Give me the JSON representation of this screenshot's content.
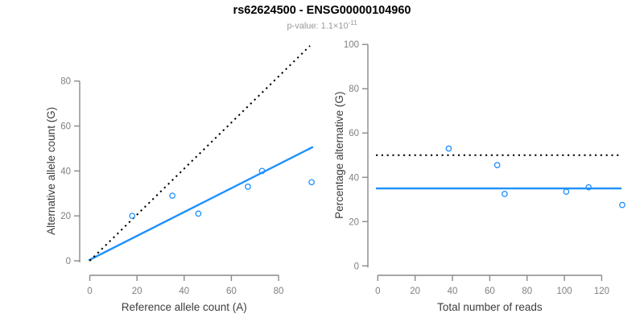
{
  "header": {
    "title": "rs62624500 - ENSG00000104960",
    "pvalue_text": "p-value: 1.1×10",
    "pvalue_exponent": "-11"
  },
  "colors": {
    "accent_blue": "#1E90FF",
    "line_black": "#000000",
    "axis_gray": "#8a8a8a",
    "tick_label_gray": "#7f7f7f",
    "axis_title_dark": "#3d3d3d",
    "subtitle_gray": "#999999"
  },
  "chart_data": [
    {
      "type": "scatter",
      "panel": "left",
      "xlabel": "Reference allele count (A)",
      "ylabel": "Alternative allele count (G)",
      "xlim": [
        0,
        94
      ],
      "ylim": [
        0,
        96
      ],
      "xticks": [
        0,
        20,
        40,
        60,
        80
      ],
      "yticks": [
        0,
        20,
        40,
        60,
        80
      ],
      "grid": false,
      "points": [
        [
          18,
          20
        ],
        [
          35,
          29
        ],
        [
          46,
          21
        ],
        [
          67,
          33
        ],
        [
          73,
          40
        ],
        [
          94,
          35
        ]
      ],
      "lines": [
        {
          "name": "fit-line",
          "style": "solid",
          "color": "#1E90FF",
          "x1": -0.5,
          "y1": 0.2,
          "x2": 94.6,
          "y2": 50.7
        },
        {
          "name": "identity-line",
          "style": "dotted",
          "color": "#000000",
          "x1": 0,
          "y1": 0,
          "x2": 93.3,
          "y2": 95.7
        }
      ]
    },
    {
      "type": "scatter",
      "panel": "right",
      "xlabel": "Total number of reads",
      "ylabel": "Percentage alternative (G)",
      "xlim": [
        0,
        131
      ],
      "ylim": [
        0,
        100
      ],
      "xticks": [
        0,
        20,
        40,
        60,
        80,
        100,
        120
      ],
      "yticks": [
        0,
        20,
        40,
        60,
        80,
        100
      ],
      "grid": false,
      "points": [
        [
          38,
          53
        ],
        [
          64,
          45.5
        ],
        [
          68,
          32.5
        ],
        [
          101,
          33.5
        ],
        [
          113,
          35.5
        ],
        [
          131,
          27.5
        ]
      ],
      "lines": [
        {
          "name": "fit-line",
          "style": "solid",
          "color": "#1E90FF",
          "x1": -1.0,
          "y1": 35,
          "x2": 130.6,
          "y2": 35
        },
        {
          "name": "reference-line",
          "style": "dotted",
          "color": "#000000",
          "x1": -1.0,
          "y1": 50,
          "x2": 130.6,
          "y2": 50
        }
      ]
    }
  ]
}
